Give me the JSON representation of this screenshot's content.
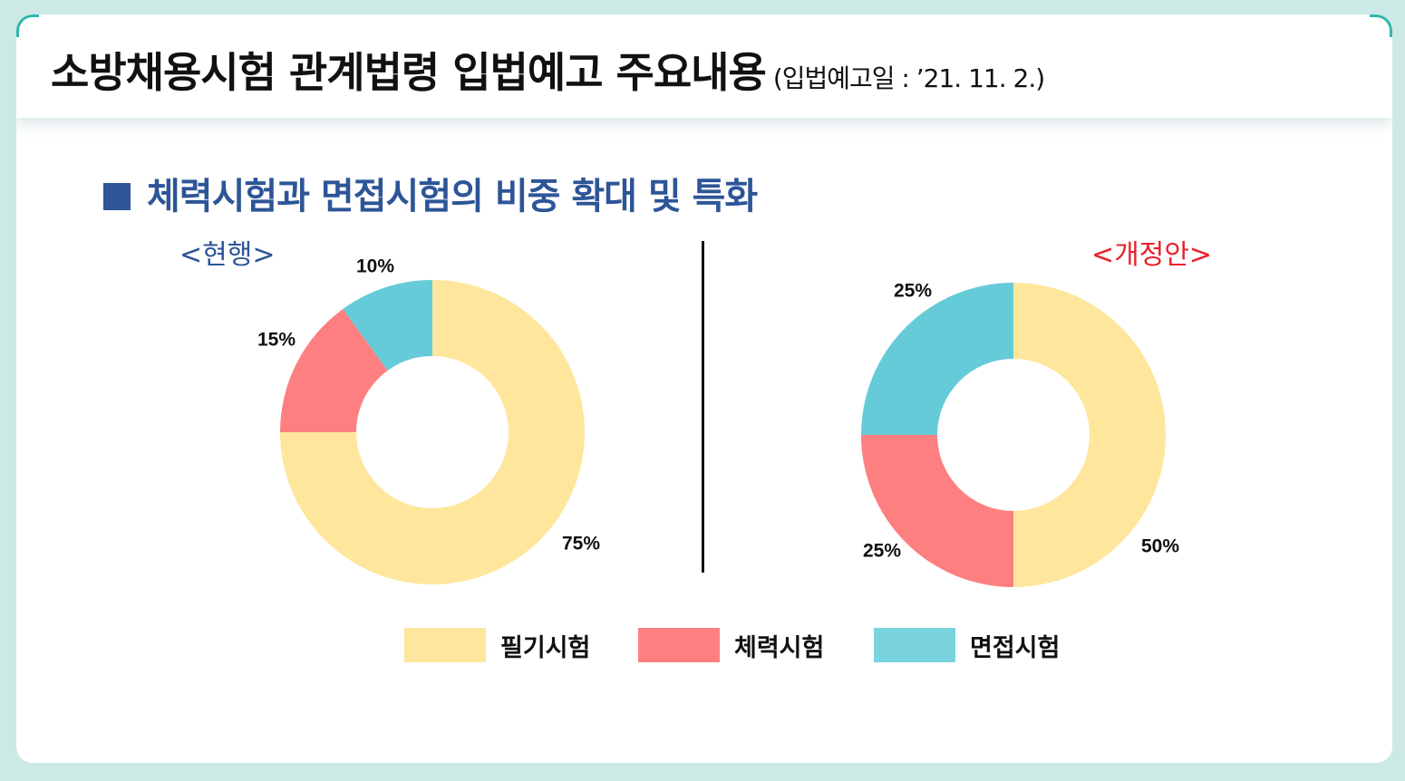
{
  "header": {
    "title": "소방채용시험 관계법령 입법예고 주요내용",
    "subtitle": "(입법예고일 : ’21. 11. 2.)"
  },
  "section": {
    "title": "체력시험과 면접시험의 비중 확대 및 특화"
  },
  "colors": {
    "written": "#fee69c",
    "physical": "#fe7f80",
    "interview": "#66cbd8",
    "legend_interview": "#79d4e0",
    "section_blue": "#2d5597",
    "proposed_red": "#e8222b"
  },
  "chart_data": [
    {
      "type": "pie",
      "title": "<현행>",
      "categories": [
        "필기시험",
        "체력시험",
        "면접시험"
      ],
      "values": [
        75,
        15,
        10
      ],
      "value_labels": [
        "75%",
        "15%",
        "10%"
      ]
    },
    {
      "type": "pie",
      "title": "<개정안>",
      "categories": [
        "필기시험",
        "체력시험",
        "면접시험"
      ],
      "values": [
        50,
        25,
        25
      ],
      "value_labels": [
        "50%",
        "25%",
        "25%"
      ]
    }
  ],
  "legend": [
    {
      "label": "필기시험"
    },
    {
      "label": "체력시험"
    },
    {
      "label": "면접시험"
    }
  ]
}
